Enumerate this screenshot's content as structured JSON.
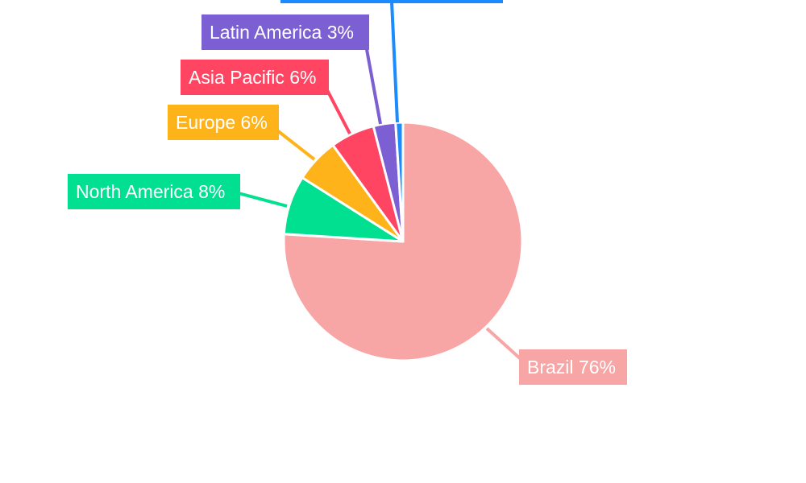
{
  "chart_data": {
    "type": "pie",
    "title": "",
    "slices": [
      {
        "label": "Brazil",
        "value": 76,
        "color": "#f8a5a6",
        "text_color": "#ffffff"
      },
      {
        "label": "North America",
        "value": 8,
        "color": "#00e090",
        "text_color": "#ffffff"
      },
      {
        "label": "Europe",
        "value": 6,
        "color": "#ffb31a",
        "text_color": "#ffffff"
      },
      {
        "label": "Asia Pacific",
        "value": 6,
        "color": "#ff4562",
        "text_color": "#ffffff"
      },
      {
        "label": "Latin America",
        "value": 3,
        "color": "#7b5fd3",
        "text_color": "#ffffff"
      },
      {
        "label": "",
        "value": 1,
        "color": "#1a8cff",
        "text_color": "#ffffff"
      }
    ]
  }
}
